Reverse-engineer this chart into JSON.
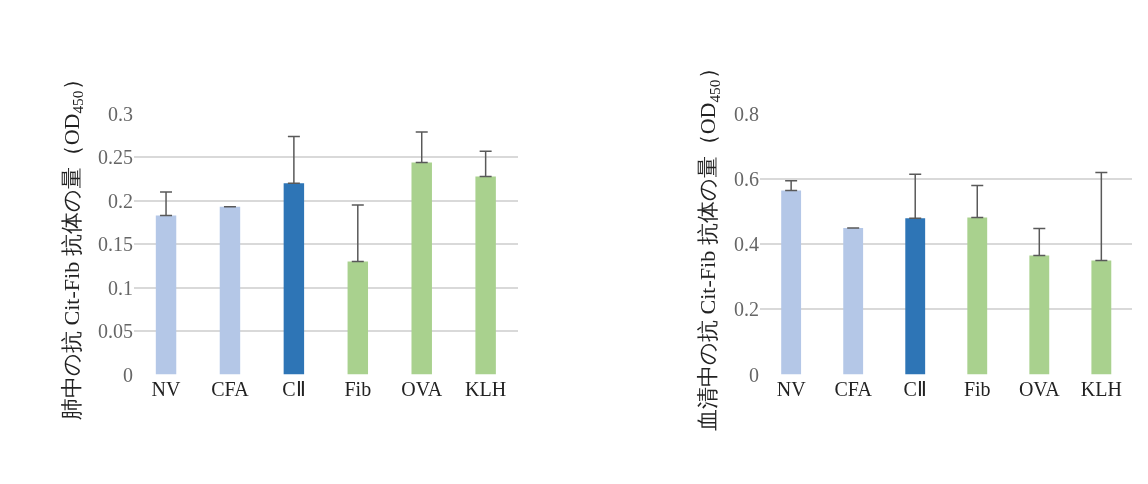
{
  "chart_data": [
    {
      "type": "bar",
      "ylabel": "肺中の抗 Cit-Fib 抗体の量（OD$_{450}$）",
      "categories": [
        "NV",
        "CFA",
        "CⅡ",
        "Fib",
        "OVA",
        "KLH"
      ],
      "values": [
        0.183,
        0.193,
        0.22,
        0.13,
        0.244,
        0.228
      ],
      "colors": [
        "#b4c7e7",
        "#b4c7e7",
        "#2e75b6",
        "#a9d18e",
        "#a9d18e",
        "#a9d18e"
      ],
      "errors": [
        [
          0.183,
          0.21
        ],
        [
          0.193,
          0.193
        ],
        [
          0.22,
          0.274
        ],
        [
          0.13,
          0.195
        ],
        [
          0.244,
          0.279
        ],
        [
          0.228,
          0.257
        ]
      ],
      "ylim": [
        0,
        0.3
      ],
      "yticks": [
        0,
        0.05,
        0.1,
        0.15,
        0.2,
        0.25,
        0.3
      ],
      "grid": "y",
      "legend": false
    },
    {
      "type": "bar",
      "ylabel": "血清中の抗 Cit-Fib 抗体の量（OD$_{450}$）",
      "categories": [
        "NV",
        "CFA",
        "CⅡ",
        "Fib",
        "OVA",
        "KLH"
      ],
      "values": [
        0.565,
        0.45,
        0.48,
        0.482,
        0.365,
        0.35
      ],
      "colors": [
        "#b4c7e7",
        "#b4c7e7",
        "#2e75b6",
        "#a9d18e",
        "#a9d18e",
        "#a9d18e"
      ],
      "errors": [
        [
          0.565,
          0.595
        ],
        [
          0.45,
          0.45
        ],
        [
          0.48,
          0.615
        ],
        [
          0.482,
          0.58
        ],
        [
          0.365,
          0.448
        ],
        [
          0.35,
          0.62
        ]
      ],
      "ylim": [
        0,
        0.8
      ],
      "yticks": [
        0,
        0.2,
        0.4,
        0.6,
        0.8
      ],
      "grid": "y",
      "legend": false
    }
  ]
}
